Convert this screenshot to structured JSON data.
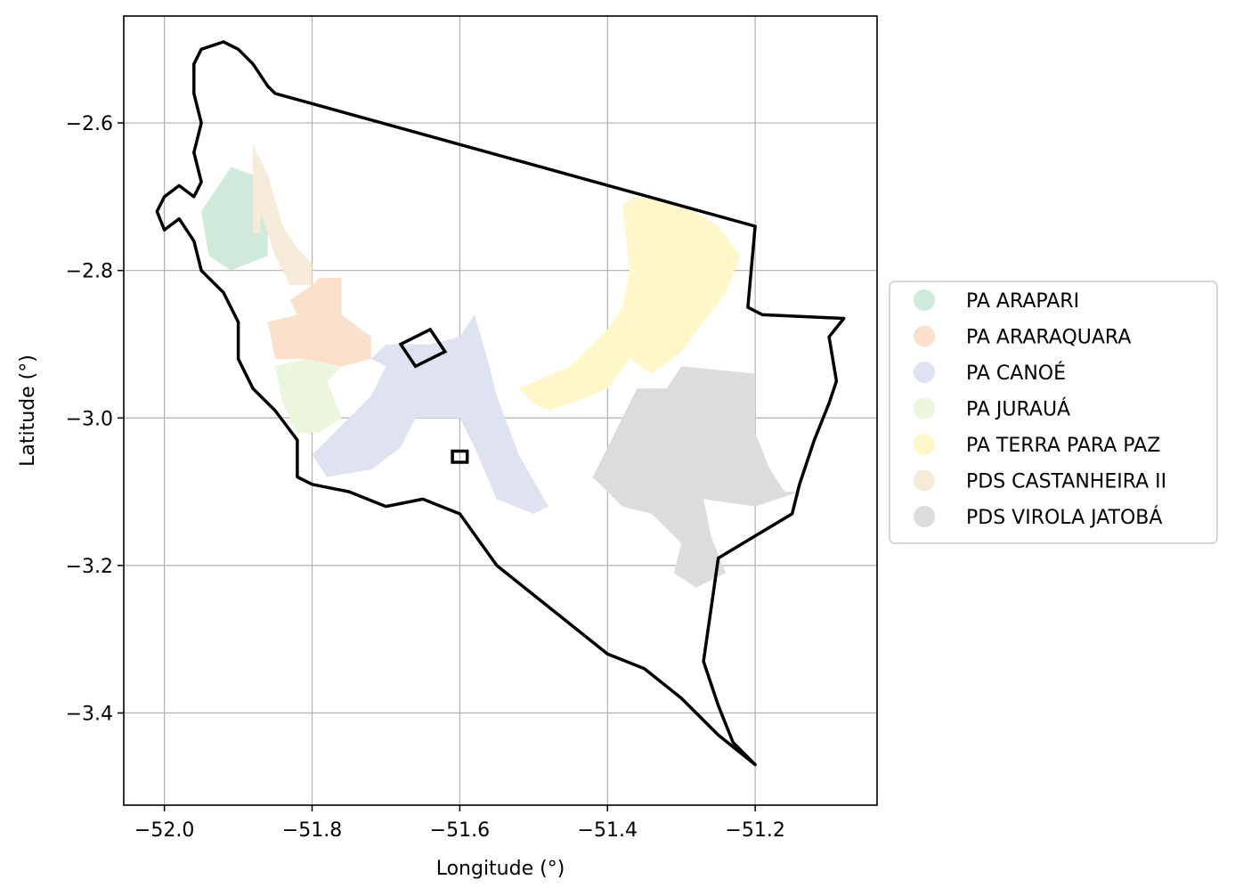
{
  "chart_data": {
    "type": "map",
    "xlabel": "Longitude (°)",
    "ylabel": "Latitude (°)",
    "xlim": [
      -52.055,
      -51.035
    ],
    "ylim": [
      -3.525,
      -2.455
    ],
    "xticks": [
      -52.0,
      -51.8,
      -51.6,
      -51.4,
      -51.2
    ],
    "xtick_labels": [
      "−52.0",
      "−51.8",
      "−51.6",
      "−51.4",
      "−51.2"
    ],
    "yticks": [
      -2.6,
      -2.8,
      -3.0,
      -3.2,
      -3.4
    ],
    "ytick_labels": [
      "−2.6",
      "−2.8",
      "−3.0",
      "−3.2",
      "−3.4"
    ],
    "grid": true,
    "legend_position": "center-right outside",
    "legend": [
      {
        "name": "PA ARAPARI",
        "color": "#cfeadb"
      },
      {
        "name": "PA ARARAQUARA",
        "color": "#fde0cb"
      },
      {
        "name": "PA CANOÉ",
        "color": "#dfe3f1"
      },
      {
        "name": "PA JURAUÁ",
        "color": "#ecf6dc"
      },
      {
        "name": "PA TERRA PARA PAZ",
        "color": "#fff6c9"
      },
      {
        "name": "PDS CASTANHEIRA II",
        "color": "#f6ead9"
      },
      {
        "name": "PDS VIROLA JATOBÁ",
        "color": "#dcdcdc"
      }
    ],
    "boundary": [
      [
        -51.92,
        -2.49
      ],
      [
        -51.9,
        -2.5
      ],
      [
        -51.88,
        -2.52
      ],
      [
        -51.86,
        -2.55
      ],
      [
        -51.85,
        -2.56
      ],
      [
        -51.2,
        -2.74
      ],
      [
        -51.21,
        -2.85
      ],
      [
        -51.19,
        -2.86
      ],
      [
        -51.08,
        -2.865
      ],
      [
        -51.1,
        -2.89
      ],
      [
        -51.09,
        -2.95
      ],
      [
        -51.1,
        -2.98
      ],
      [
        -51.12,
        -3.03
      ],
      [
        -51.14,
        -3.09
      ],
      [
        -51.15,
        -3.13
      ],
      [
        -51.2,
        -3.16
      ],
      [
        -51.25,
        -3.19
      ],
      [
        -51.26,
        -3.26
      ],
      [
        -51.27,
        -3.33
      ],
      [
        -51.25,
        -3.39
      ],
      [
        -51.23,
        -3.44
      ],
      [
        -51.2,
        -3.47
      ],
      [
        -51.25,
        -3.43
      ],
      [
        -51.3,
        -3.38
      ],
      [
        -51.35,
        -3.34
      ],
      [
        -51.4,
        -3.32
      ],
      [
        -51.45,
        -3.28
      ],
      [
        -51.5,
        -3.24
      ],
      [
        -51.55,
        -3.2
      ],
      [
        -51.6,
        -3.13
      ],
      [
        -51.65,
        -3.11
      ],
      [
        -51.7,
        -3.12
      ],
      [
        -51.75,
        -3.1
      ],
      [
        -51.8,
        -3.09
      ],
      [
        -51.82,
        -3.08
      ],
      [
        -51.82,
        -3.03
      ],
      [
        -51.85,
        -2.99
      ],
      [
        -51.88,
        -2.96
      ],
      [
        -51.9,
        -2.92
      ],
      [
        -51.9,
        -2.87
      ],
      [
        -51.92,
        -2.83
      ],
      [
        -51.95,
        -2.8
      ],
      [
        -51.96,
        -2.76
      ],
      [
        -51.98,
        -2.73
      ],
      [
        -52.0,
        -2.745
      ],
      [
        -52.01,
        -2.72
      ],
      [
        -52.0,
        -2.7
      ],
      [
        -51.98,
        -2.685
      ],
      [
        -51.96,
        -2.7
      ],
      [
        -51.95,
        -2.68
      ],
      [
        -51.96,
        -2.64
      ],
      [
        -51.95,
        -2.6
      ],
      [
        -51.96,
        -2.56
      ],
      [
        -51.96,
        -2.52
      ],
      [
        -51.95,
        -2.5
      ],
      [
        -51.92,
        -2.49
      ]
    ],
    "settlements": [
      {
        "name": "PA ARAPARI",
        "polygons": [
          [
            [
              -51.91,
              -2.66
            ],
            [
              -51.88,
              -2.67
            ],
            [
              -51.88,
              -2.73
            ],
            [
              -51.86,
              -2.72
            ],
            [
              -51.86,
              -2.78
            ],
            [
              -51.91,
              -2.8
            ],
            [
              -51.94,
              -2.78
            ],
            [
              -51.95,
              -2.72
            ]
          ]
        ]
      },
      {
        "name": "PDS CASTANHEIRA II",
        "polygons": [
          [
            [
              -51.88,
              -2.63
            ],
            [
              -51.86,
              -2.67
            ],
            [
              -51.84,
              -2.74
            ],
            [
              -51.82,
              -2.77
            ],
            [
              -51.8,
              -2.79
            ],
            [
              -51.8,
              -2.82
            ],
            [
              -51.83,
              -2.82
            ],
            [
              -51.85,
              -2.78
            ],
            [
              -51.87,
              -2.72
            ],
            [
              -51.87,
              -2.75
            ],
            [
              -51.88,
              -2.75
            ],
            [
              -51.88,
              -2.71
            ]
          ]
        ]
      },
      {
        "name": "PA ARARAQUARA",
        "polygons": [
          [
            [
              -51.8,
              -2.82
            ],
            [
              -51.79,
              -2.81
            ],
            [
              -51.76,
              -2.81
            ],
            [
              -51.76,
              -2.86
            ],
            [
              -51.72,
              -2.89
            ],
            [
              -51.72,
              -2.92
            ],
            [
              -51.76,
              -2.93
            ],
            [
              -51.81,
              -2.92
            ],
            [
              -51.85,
              -2.92
            ],
            [
              -51.86,
              -2.87
            ],
            [
              -51.82,
              -2.86
            ],
            [
              -51.83,
              -2.84
            ]
          ]
        ]
      },
      {
        "name": "PA JURAUÁ",
        "polygons": [
          [
            [
              -51.81,
              -2.92
            ],
            [
              -51.76,
              -2.93
            ],
            [
              -51.78,
              -2.95
            ],
            [
              -51.76,
              -3.0
            ],
            [
              -51.79,
              -3.02
            ],
            [
              -51.82,
              -3.02
            ],
            [
              -51.84,
              -2.98
            ],
            [
              -51.85,
              -2.93
            ]
          ]
        ]
      },
      {
        "name": "PA CANOÉ",
        "polygons": [
          [
            [
              -51.72,
              -2.92
            ],
            [
              -51.7,
              -2.93
            ],
            [
              -51.72,
              -2.97
            ],
            [
              -51.76,
              -3.01
            ],
            [
              -51.78,
              -3.03
            ],
            [
              -51.8,
              -3.05
            ],
            [
              -51.78,
              -3.08
            ],
            [
              -51.72,
              -3.07
            ],
            [
              -51.68,
              -3.04
            ],
            [
              -51.66,
              -3.0
            ],
            [
              -51.6,
              -3.0
            ],
            [
              -51.58,
              -3.04
            ],
            [
              -51.55,
              -3.11
            ],
            [
              -51.5,
              -3.13
            ],
            [
              -51.48,
              -3.12
            ],
            [
              -51.52,
              -3.05
            ],
            [
              -51.55,
              -2.97
            ],
            [
              -51.56,
              -2.93
            ],
            [
              -51.58,
              -2.86
            ],
            [
              -51.6,
              -2.89
            ],
            [
              -51.64,
              -2.9
            ],
            [
              -51.66,
              -2.9
            ],
            [
              -51.7,
              -2.9
            ]
          ]
        ]
      },
      {
        "name": "PA TERRA PARA PAZ",
        "polygons": [
          [
            [
              -51.38,
              -2.71
            ],
            [
              -51.36,
              -2.7
            ],
            [
              -51.3,
              -2.71
            ],
            [
              -51.25,
              -2.74
            ],
            [
              -51.22,
              -2.78
            ],
            [
              -51.24,
              -2.83
            ],
            [
              -51.27,
              -2.87
            ],
            [
              -51.3,
              -2.91
            ],
            [
              -51.34,
              -2.94
            ],
            [
              -51.37,
              -2.92
            ],
            [
              -51.4,
              -2.96
            ],
            [
              -51.45,
              -2.98
            ],
            [
              -51.48,
              -2.99
            ],
            [
              -51.5,
              -2.98
            ],
            [
              -51.52,
              -2.96
            ],
            [
              -51.45,
              -2.93
            ],
            [
              -51.4,
              -2.88
            ],
            [
              -51.38,
              -2.85
            ],
            [
              -51.37,
              -2.8
            ]
          ]
        ]
      },
      {
        "name": "PDS VIROLA JATOBÁ",
        "polygons": [
          [
            [
              -51.36,
              -2.96
            ],
            [
              -51.32,
              -2.96
            ],
            [
              -51.3,
              -2.93
            ],
            [
              -51.2,
              -2.94
            ],
            [
              -51.2,
              -3.02
            ],
            [
              -51.18,
              -3.07
            ],
            [
              -51.16,
              -3.1
            ],
            [
              -51.14,
              -3.1
            ],
            [
              -51.2,
              -3.12
            ],
            [
              -51.27,
              -3.11
            ],
            [
              -51.26,
              -3.16
            ],
            [
              -51.24,
              -3.21
            ],
            [
              -51.28,
              -3.23
            ],
            [
              -51.31,
              -3.21
            ],
            [
              -51.3,
              -3.17
            ],
            [
              -51.34,
              -3.13
            ],
            [
              -51.38,
              -3.12
            ],
            [
              -51.42,
              -3.08
            ],
            [
              -51.4,
              -3.04
            ],
            [
              -51.38,
              -3.0
            ]
          ]
        ]
      }
    ],
    "outlines": [
      [
        [
          -51.68,
          -2.9
        ],
        [
          -51.64,
          -2.88
        ],
        [
          -51.62,
          -2.91
        ],
        [
          -51.66,
          -2.93
        ]
      ],
      [
        [
          -51.61,
          -3.045
        ],
        [
          -51.59,
          -3.045
        ],
        [
          -51.59,
          -3.06
        ],
        [
          -51.61,
          -3.06
        ]
      ]
    ]
  }
}
